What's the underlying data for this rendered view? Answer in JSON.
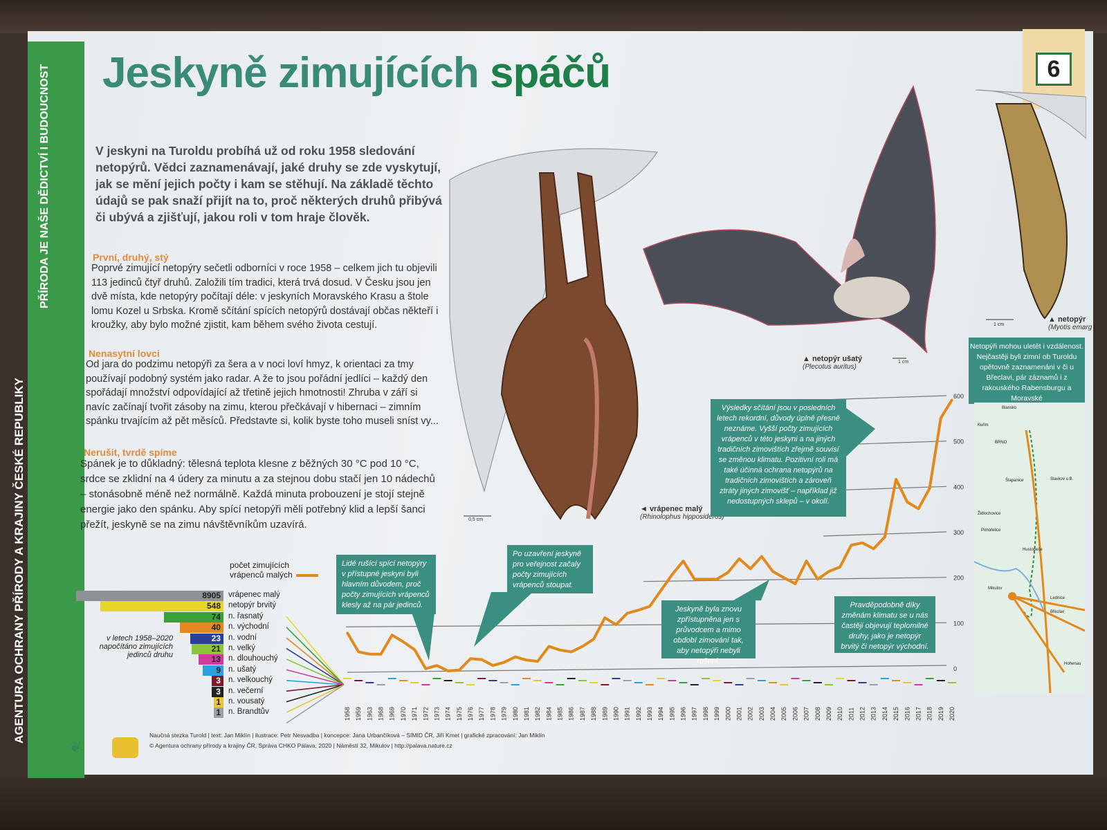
{
  "strip": {
    "top_text": "PŘÍRODA JE NAŠE DĚDICTVÍ I BUDOUCNOST",
    "bottom_text": "AGENTURA OCHRANY PŘÍRODY A KRAJINY ČESKÉ REPUBLIKY"
  },
  "header": {
    "title_a": "Jeskyně zimujících",
    "title_b": "spáčů",
    "stop_number": "6"
  },
  "intro": "V jeskyni na Turoldu probíhá už od roku 1958 sledování netopýrů. Vědci zaznamenávají, jaké druhy se zde vyskytují, jak se mění jejich počty i kam se stěhují. Na základě těchto údajů se pak snaží přijít na to, proč některých druhů přibývá či ubývá a zjišťují, jakou roli v tom hraje člověk.",
  "sections": [
    {
      "heading": "První, druhý, stý",
      "text": "Poprvé zimující netopýry sečetli odborníci v roce 1958 – celkem jich tu objevili 113 jedinců čtyř druhů. Založili tím tradici, která trvá dosud. V Česku jsou jen dvě místa, kde netopýry počítají déle: v jeskyních Moravského Krasu a štole lomu Kozel u Srbska. Kromě sčítání spících netopýrů dostávají občas někteří i kroužky, aby bylo možné zjistit, kam během svého života cestují."
    },
    {
      "heading": "Nenasytní lovci",
      "text": "Od jara do podzimu netopýři za šera a v noci loví hmyz, k orientaci za tmy používají podobný systém jako radar. A že to jsou pořádní jedlíci – každý den spořádají množství odpovídající až třetině jejich hmotnosti! Zhruba v září si navíc začínají tvořit zásoby na zimu, kterou přečkávají v hibernaci – zimním spánku trvajícím až pět měsíců. Představte si, kolik byste toho museli sníst vy..."
    },
    {
      "heading": "Nerušit, tvrdě spíme",
      "text": "Spánek je to důkladný: tělesná teplota klesne z běžných 30 °C pod 10 °C, srdce se zklidní na 4 údery za minutu a za stejnou dobu stačí jen 10 nádechů – stonásobně méně než normálně. Každá minuta probouzení je stojí stejně energie jako den spánku. Aby spící netopýři měli potřebný klid a lepší šanci přežít, jeskyně se na zimu návštěvníkům uzavírá."
    }
  ],
  "illustrations": {
    "bat1_name": "◄ vrápenec malý",
    "bat1_latin": "(Rhinolophus hipposideros)",
    "bat1_scale": "0,5 cm",
    "bat2_name": "▲ netopýr ušatý",
    "bat2_latin": "(Plecotus auritus)",
    "bat2_scale": "1 cm",
    "bat3_name": "▲ netopýr",
    "bat3_latin": "(Myotis emarg",
    "bat3_scale": "1 cm"
  },
  "callouts": {
    "people": "Lidé rušící spící netopýry v přístupné jeskyni byli hlavním důvodem, proč počty zimujících vrápenců klesly až na pár jedinců.",
    "closure": "Po uzavření jeskyně pro veřejnost začaly počty zimujících vrápenců stoupat.",
    "reopen": "Jeskyně byla znovu zpřístupněna jen s průvodcem a mimo období zimování tak, aby netopýři nebyli rušeni.",
    "climate": "Pravděpodobně díky změnám klimatu se u nás častěji objevují teplomilné druhy, jako je netopýr brvitý či netopýr východní.",
    "records": "Výsledky sčítání jsou v posledních letech rekordní, důvody úplně přesně neznáme. Vyšší počty zimujících vrápenců v této jeskyni a na jiných tradičních zimovištích zřejmě souvisí se změnou klimatu. Pozitivní roli má také účinná ochrana netopýrů na tradičních zimovištích a zároveň ztráty jiných zimovišť – například již nedostupných sklepů – v okolí.",
    "migration": "Netopýři mohou uletět i vzdálenost. Nejčastěji byli zimní ob Turoldu opětovně zaznamenáni v či u Břeclavi, pár záznamů i z rakouského Rabensburgu a Moravské"
  },
  "legend": {
    "line_label_1": "počet zimujících",
    "line_label_2": "vrápenců malých",
    "bar_caption": "v letech 1958–2020 napočítáno zimujících jedinců druhu"
  },
  "chart_data": [
    {
      "type": "bar",
      "orientation": "horizontal",
      "categories": [
        "vrápenec malý",
        "netopýr brvitý",
        "n. řasnatý",
        "n. východní",
        "n. vodní",
        "n. velký",
        "n. dlouhouchý",
        "n. ušatý",
        "n. velkouchý",
        "n. večerní",
        "n. vousatý",
        "n. Brandtův"
      ],
      "values": [
        8905,
        548,
        74,
        40,
        23,
        21,
        13,
        9,
        3,
        3,
        1,
        1
      ],
      "colors": [
        "#8c9296",
        "#e6d629",
        "#3aa03a",
        "#e08a20",
        "#2c3f98",
        "#8cc43a",
        "#d13c9a",
        "#2aa2e0",
        "#7a1a2a",
        "#222222",
        "#e8c43a",
        "#9aa2a8"
      ],
      "title": "v letech 1958–2020 napočítáno zimujících jedinců druhu",
      "broken_axis": true
    },
    {
      "type": "line",
      "series": [
        {
          "name": "počet zimujících vrápenců malých",
          "color": "#e08a1e",
          "x": [
            "1958",
            "1959",
            "1963",
            "1968",
            "1969",
            "1970",
            "1971",
            "1972",
            "1973",
            "1974",
            "1975",
            "1976",
            "1977",
            "1978",
            "1979",
            "1980",
            "1981",
            "1982",
            "1984",
            "1985",
            "1986",
            "1987",
            "1988",
            "1989",
            "1990",
            "1991",
            "1992",
            "1993",
            "1994",
            "1995",
            "1996",
            "1997",
            "1998",
            "1999",
            "2000",
            "2001",
            "2002",
            "2003",
            "2004",
            "2005",
            "2006",
            "2007",
            "2008",
            "2009",
            "2010",
            "2011",
            "2012",
            "2013",
            "2014",
            "2015",
            "2016",
            "2017",
            "2018",
            "2019",
            "2020"
          ],
          "values": [
            87,
            45,
            40,
            40,
            82,
            67,
            50,
            8,
            15,
            3,
            5,
            30,
            28,
            15,
            22,
            34,
            27,
            24,
            57,
            49,
            45,
            57,
            73,
            120,
            105,
            130,
            137,
            145,
            180,
            215,
            245,
            205,
            205,
            205,
            220,
            250,
            228,
            255,
            222,
            208,
            195,
            245,
            205,
            222,
            232,
            280,
            285,
            272,
            298,
            425,
            375,
            360,
            405,
            560,
            600
          ]
        }
      ],
      "yticks": [
        0,
        100,
        200,
        300,
        400,
        500,
        600
      ],
      "ylim": [
        0,
        600
      ],
      "grid": true
    }
  ],
  "footer": {
    "line1": "Naučná stezka Turold | text: Jan Miklín | ilustrace: Petr Nesvadba | koncepce: Jana Urbančíková – SIMID ČR, Jiří Kmet | grafické zpracování: Jan Miklín",
    "line2": "© Agentura ochrany přírody a krajiny ČR, Správa CHKO Pálava, 2020 | Náměstí 32, Mikulov | http://palava.nature.cz"
  },
  "map_labels": [
    "Blansko",
    "Kuřim",
    "BRNO",
    "Slavkov u B.",
    "Šlapanice",
    "Židlochovice",
    "Pohořelice",
    "Hustopeče",
    "Mikulov",
    "Lednice",
    "Břeclav",
    "Hohenau"
  ],
  "colors": {
    "teal": "#3a8f80",
    "orange": "#e08a1e",
    "green": "#2f8a3e",
    "title": "#3a8a78"
  }
}
